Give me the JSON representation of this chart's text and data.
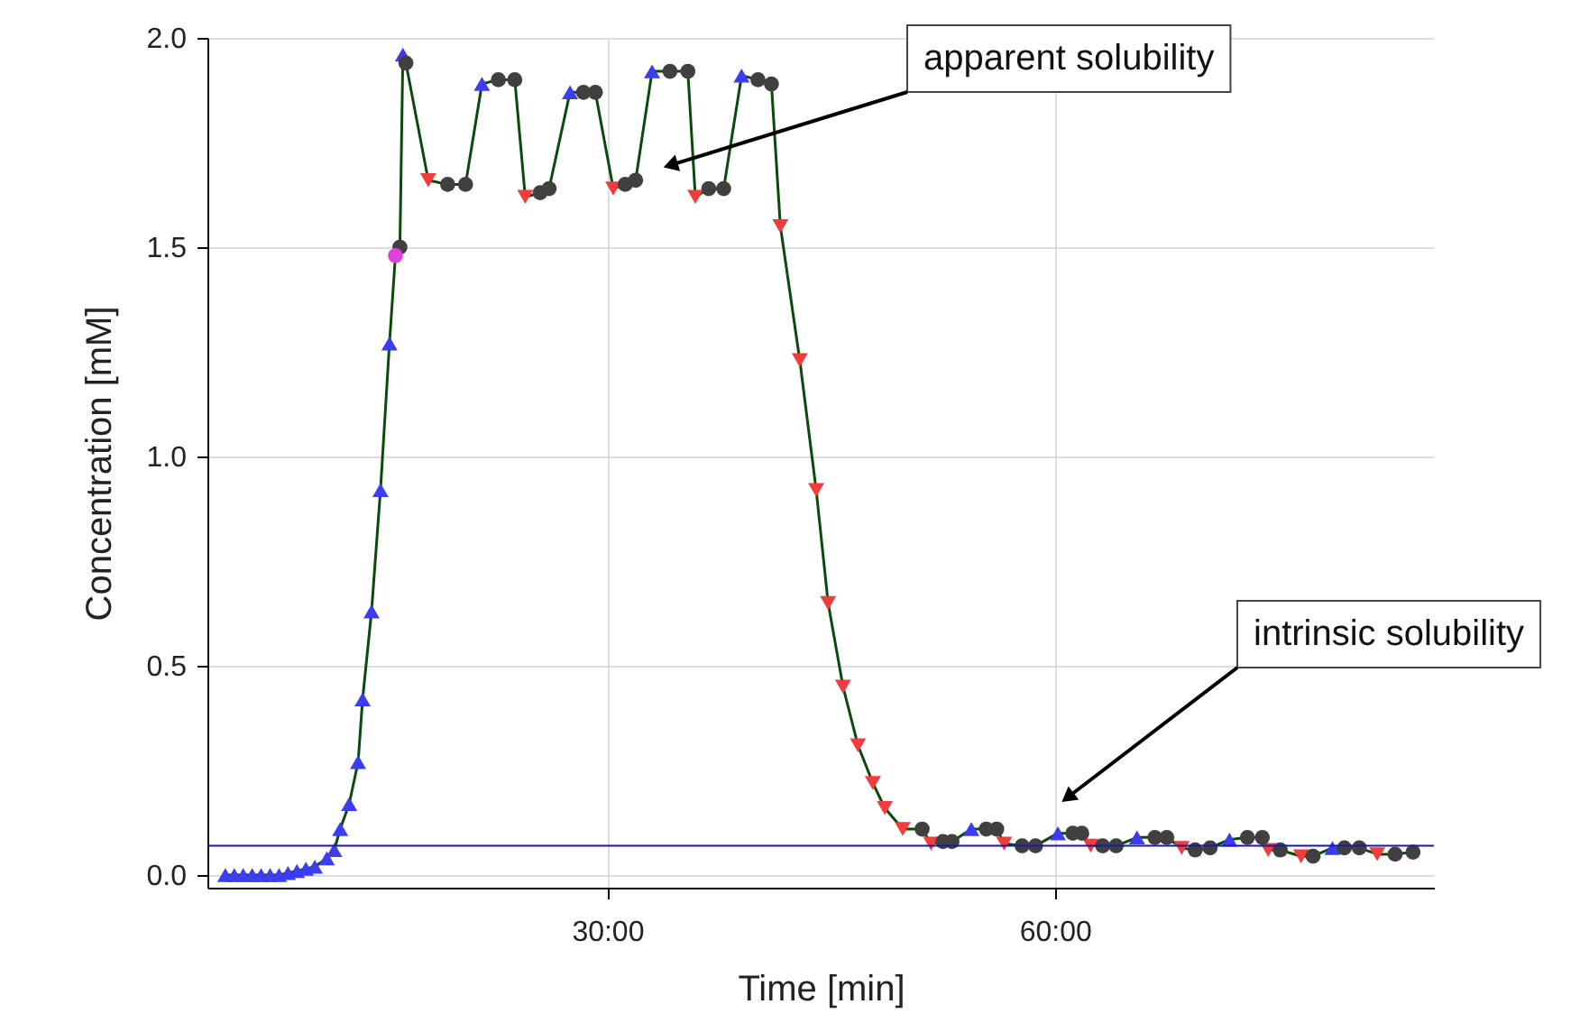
{
  "chart_data": {
    "type": "line",
    "xlabel": "Time [min]",
    "ylabel": "Concentration [mM]",
    "xlim": [
      3.2,
      85.4
    ],
    "xticks": [
      {
        "value": 30,
        "label": "30:00"
      },
      {
        "value": 60,
        "label": "60:00"
      }
    ],
    "ylim": [
      -0.03,
      2.0
    ],
    "yticks": [
      {
        "value": 0,
        "label": "0.0"
      },
      {
        "value": 0.5,
        "label": "0.5"
      },
      {
        "value": 1,
        "label": "1.0"
      },
      {
        "value": 1.5,
        "label": "1.5"
      },
      {
        "value": 2,
        "label": "2.0"
      }
    ],
    "grid": true,
    "line_style": "solid",
    "ref_lines": [
      {
        "axis": "y",
        "value": 0.07,
        "color": "#1a1aa0"
      }
    ],
    "annotations": [
      "apparent solubility",
      "intrinsic solubility"
    ],
    "series": [
      {
        "color": "#0a4a0a",
        "marker": "none",
        "x": [
          4.4,
          5.0,
          5.6,
          6.2,
          6.8,
          7.4,
          8.0,
          8.6,
          9.2,
          9.8,
          10.4,
          11.2,
          11.7,
          12.1,
          12.7,
          13.3,
          13.6,
          14.2,
          14.8,
          15.4,
          15.8,
          16.1,
          16.3,
          16.5,
          18.0,
          19.3,
          20.5,
          21.6,
          22.7,
          23.8,
          24.5,
          25.5,
          26.1,
          27.5,
          28.4,
          29.2,
          30.4,
          31.2,
          31.9,
          33.0,
          34.2,
          35.4,
          35.9,
          36.8,
          37.8,
          39.0,
          40.1,
          41.0,
          41.6,
          42.9,
          44.0,
          44.8,
          45.8,
          46.8,
          47.8,
          48.6,
          49.8,
          51.1,
          51.7,
          52.5,
          53.1,
          54.4,
          55.4,
          56.1,
          56.6,
          57.8,
          58.7,
          60.2,
          61.2,
          61.8,
          62.4,
          63.2,
          64.1,
          65.5,
          66.7,
          67.5,
          68.5,
          69.4,
          70.4,
          71.7,
          72.9,
          73.9,
          74.3,
          75.1,
          76.5,
          77.3,
          78.6,
          79.4,
          80.4,
          81.6,
          82.8,
          84.0
        ],
        "values": [
          0,
          0,
          0,
          0,
          0,
          0,
          0,
          0.005,
          0.01,
          0.015,
          0.02,
          0.04,
          0.06,
          0.11,
          0.17,
          0.27,
          0.42,
          0.63,
          0.92,
          1.27,
          1.48,
          1.5,
          1.96,
          1.94,
          1.66,
          1.65,
          1.65,
          1.89,
          1.9,
          1.9,
          1.62,
          1.63,
          1.64,
          1.87,
          1.87,
          1.87,
          1.64,
          1.65,
          1.66,
          1.92,
          1.92,
          1.92,
          1.62,
          1.64,
          1.64,
          1.91,
          1.9,
          1.89,
          1.55,
          1.23,
          0.92,
          0.65,
          0.45,
          0.31,
          0.22,
          0.16,
          0.11,
          0.11,
          0.075,
          0.08,
          0.08,
          0.11,
          0.11,
          0.11,
          0.075,
          0.07,
          0.07,
          0.1,
          0.1,
          0.1,
          0.07,
          0.07,
          0.07,
          0.09,
          0.09,
          0.09,
          0.065,
          0.06,
          0.065,
          0.085,
          0.09,
          0.09,
          0.06,
          0.06,
          0.045,
          0.045,
          0.065,
          0.065,
          0.065,
          0.05,
          0.05,
          0.055
        ]
      },
      {
        "type": "scatter",
        "color": "#3c3cf0",
        "marker": "triangle",
        "x": [
          4.4,
          5.0,
          5.6,
          6.2,
          6.8,
          7.4,
          8.0,
          8.6,
          9.2,
          9.8,
          10.4,
          11.2,
          11.7,
          12.1,
          12.7,
          13.3,
          13.6,
          14.2,
          14.8,
          15.4,
          16.3,
          21.6,
          27.5,
          33.0,
          39.0,
          54.4,
          60.2,
          65.5,
          71.7,
          78.6
        ],
        "values": [
          0,
          0,
          0,
          0,
          0,
          0,
          0,
          0.005,
          0.01,
          0.015,
          0.02,
          0.04,
          0.06,
          0.11,
          0.17,
          0.27,
          0.42,
          0.63,
          0.92,
          1.27,
          1.96,
          1.89,
          1.87,
          1.92,
          1.91,
          0.11,
          0.1,
          0.09,
          0.085,
          0.065
        ]
      },
      {
        "type": "scatter",
        "color": "#f03c3c",
        "marker": "triangle-down",
        "x": [
          18.0,
          24.5,
          30.4,
          35.9,
          41.6,
          42.9,
          44.0,
          44.8,
          45.8,
          46.8,
          47.8,
          48.6,
          49.8,
          51.7,
          56.6,
          62.4,
          68.5,
          74.3,
          76.5,
          81.6
        ],
        "values": [
          1.66,
          1.62,
          1.64,
          1.62,
          1.55,
          1.23,
          0.92,
          0.65,
          0.45,
          0.31,
          0.22,
          0.16,
          0.11,
          0.075,
          0.075,
          0.07,
          0.065,
          0.06,
          0.045,
          0.05
        ]
      },
      {
        "type": "scatter",
        "color": "#404040",
        "marker": "circle",
        "x": [
          16.1,
          16.5,
          19.3,
          20.5,
          22.7,
          23.8,
          25.5,
          26.1,
          28.4,
          29.2,
          31.2,
          31.9,
          34.2,
          35.4,
          36.8,
          37.8,
          40.1,
          41.0,
          51.1,
          52.5,
          53.1,
          55.4,
          56.1,
          57.8,
          58.7,
          61.2,
          61.8,
          63.2,
          64.1,
          66.7,
          67.5,
          69.4,
          70.4,
          72.9,
          73.9,
          75.1,
          77.3,
          79.4,
          80.4,
          82.8,
          84.0
        ],
        "values": [
          1.5,
          1.94,
          1.65,
          1.65,
          1.9,
          1.9,
          1.63,
          1.64,
          1.87,
          1.87,
          1.65,
          1.66,
          1.92,
          1.92,
          1.64,
          1.64,
          1.9,
          1.89,
          0.11,
          0.08,
          0.08,
          0.11,
          0.11,
          0.07,
          0.07,
          0.1,
          0.1,
          0.07,
          0.07,
          0.09,
          0.09,
          0.06,
          0.065,
          0.09,
          0.09,
          0.06,
          0.045,
          0.065,
          0.065,
          0.05,
          0.055
        ]
      },
      {
        "type": "scatter",
        "color": "#e040e0",
        "marker": "circle",
        "x": [
          15.8
        ],
        "values": [
          1.48
        ]
      }
    ]
  }
}
